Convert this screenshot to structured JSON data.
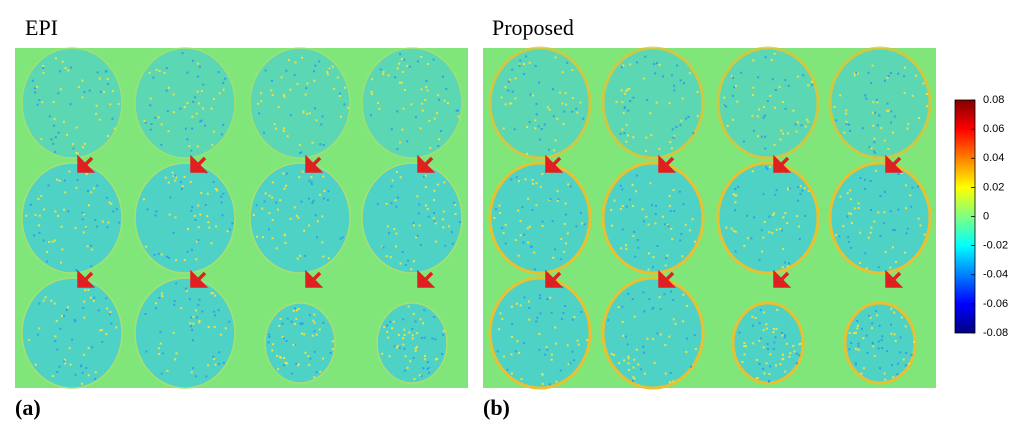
{
  "panels": [
    {
      "title": "EPI",
      "label": "(a)"
    },
    {
      "title": "Proposed",
      "label": "(b)"
    }
  ],
  "colorbar": {
    "lim": [
      -0.08,
      0.08
    ],
    "ticks": [
      0.08,
      0.06,
      0.04,
      0.02,
      0,
      -0.02,
      -0.04,
      -0.06,
      -0.08
    ]
  }
}
